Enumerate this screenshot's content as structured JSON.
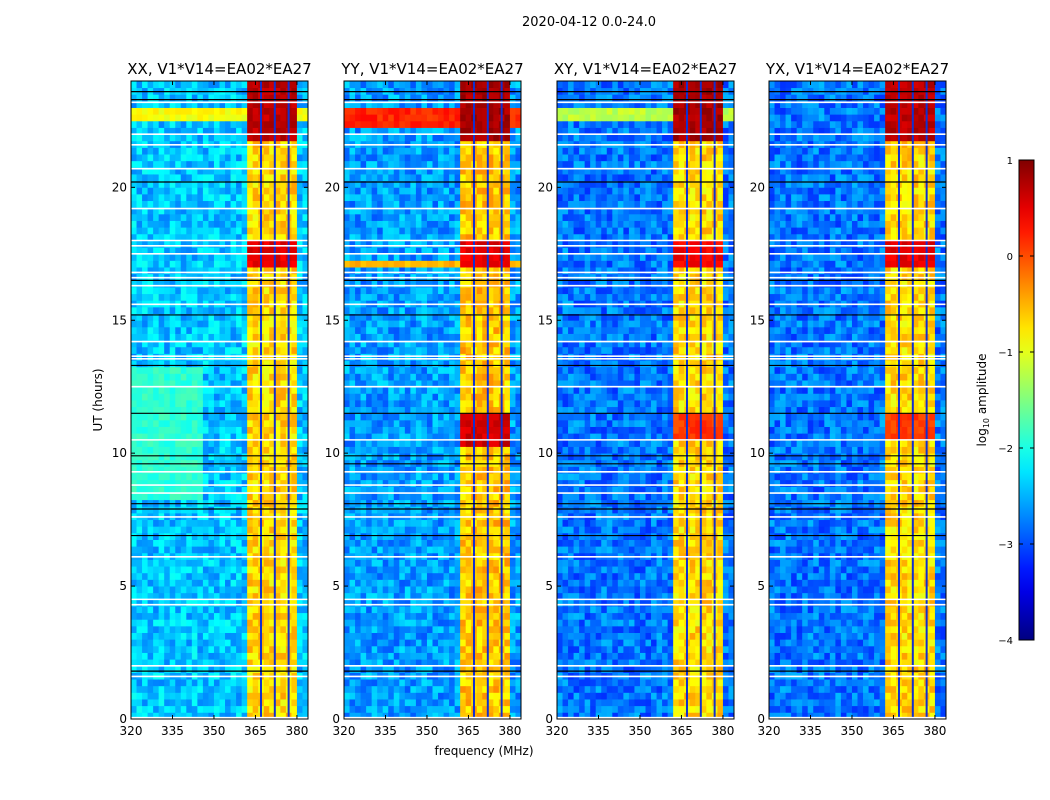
{
  "chart_data": {
    "type": "heatmap",
    "title": "2020-04-12 0.0-24.0",
    "xlabel": "frequency (MHz)",
    "ylabel": "UT (hours)",
    "xlim": [
      320,
      384
    ],
    "ylim": [
      0,
      24
    ],
    "xticks": [
      320,
      335,
      350,
      365,
      380
    ],
    "yticks": [
      0,
      5,
      10,
      15,
      20
    ],
    "colorbar": {
      "label_main": "log",
      "label_sub": "10",
      "label_rest": " amplitude",
      "colormap": "jet",
      "range": [
        -4,
        1
      ],
      "ticks": [
        1,
        0,
        -1,
        -2,
        -3,
        -4
      ],
      "tick_labels": [
        "1",
        "0",
        "−1",
        "−2",
        "−3",
        "−4"
      ]
    },
    "grid_resolution": {
      "freq_step_mhz": 2,
      "time_step_hours": 0.25
    },
    "rfi_band_mhz": [
      362,
      380
    ],
    "band_gap_lines_mhz": [
      367,
      372,
      377
    ],
    "flagged_hours_white": [
      0.05,
      1.6,
      2.0,
      4.3,
      4.5,
      6.1,
      7.6,
      8.5,
      8.8,
      9.3,
      10.5,
      12.5,
      13.55,
      13.65,
      14.2,
      15.6,
      16.3,
      16.6,
      16.8,
      17.5,
      17.8,
      18.0,
      19.2,
      20.7,
      21.6,
      22.0,
      23.2
    ],
    "flagged_hours_black": [
      1.8,
      6.9,
      7.9,
      8.1,
      9.6,
      9.9,
      11.5,
      13.3,
      15.2,
      16.5,
      20.2,
      23.3,
      23.6
    ],
    "panels": [
      {
        "title": "XX, V1*V14=EA02*EA27",
        "background": -2.4,
        "band": -0.7,
        "features": [
          {
            "f": [
              320,
              384
            ],
            "t": [
              22.4,
              22.9
            ],
            "level": -0.9
          },
          {
            "f": [
              320,
              384
            ],
            "t": [
              22.5,
              22.6
            ],
            "level": 0.3
          },
          {
            "f": [
              362,
              380
            ],
            "t": [
              21.8,
              24
            ],
            "level": 0.7
          },
          {
            "f": [
              362,
              380
            ],
            "t": [
              17.0,
              18.0
            ],
            "level": 0.5
          },
          {
            "f": [
              320,
              345
            ],
            "t": [
              8.2,
              13.3
            ],
            "level": -1.9
          }
        ]
      },
      {
        "title": "YY, V1*V14=EA02*EA27",
        "background": -2.6,
        "band": -0.6,
        "features": [
          {
            "f": [
              320,
              384
            ],
            "t": [
              22.3,
              23.0
            ],
            "level": 0.2
          },
          {
            "f": [
              362,
              380
            ],
            "t": [
              21.8,
              24
            ],
            "level": 0.8
          },
          {
            "f": [
              362,
              380
            ],
            "t": [
              17.0,
              18.0
            ],
            "level": 0.5
          },
          {
            "f": [
              320,
              384
            ],
            "t": [
              17.1,
              17.3
            ],
            "level": -0.5
          },
          {
            "f": [
              362,
              380
            ],
            "t": [
              10.3,
              11.4
            ],
            "level": 0.6
          }
        ]
      },
      {
        "title": "XY, V1*V14=EA02*EA27",
        "background": -2.8,
        "band": -0.7,
        "features": [
          {
            "f": [
              320,
              384
            ],
            "t": [
              22.4,
              22.9
            ],
            "level": -1.2
          },
          {
            "f": [
              362,
              380
            ],
            "t": [
              21.8,
              24
            ],
            "level": 0.8
          },
          {
            "f": [
              362,
              380
            ],
            "t": [
              17.0,
              18.0
            ],
            "level": 0.4
          },
          {
            "f": [
              362,
              380
            ],
            "t": [
              10.5,
              11.5
            ],
            "level": 0.1
          }
        ]
      },
      {
        "title": "YX, V1*V14=EA02*EA27",
        "background": -2.8,
        "band": -0.7,
        "features": [
          {
            "f": [
              320,
              384
            ],
            "t": [
              22.5,
              22.6
            ],
            "level": 0.2
          },
          {
            "f": [
              362,
              380
            ],
            "t": [
              21.8,
              24
            ],
            "level": 0.7
          },
          {
            "f": [
              362,
              380
            ],
            "t": [
              17.0,
              18.0
            ],
            "level": 0.5
          },
          {
            "f": [
              362,
              380
            ],
            "t": [
              10.5,
              11.5
            ],
            "level": 0.1
          }
        ]
      }
    ]
  }
}
